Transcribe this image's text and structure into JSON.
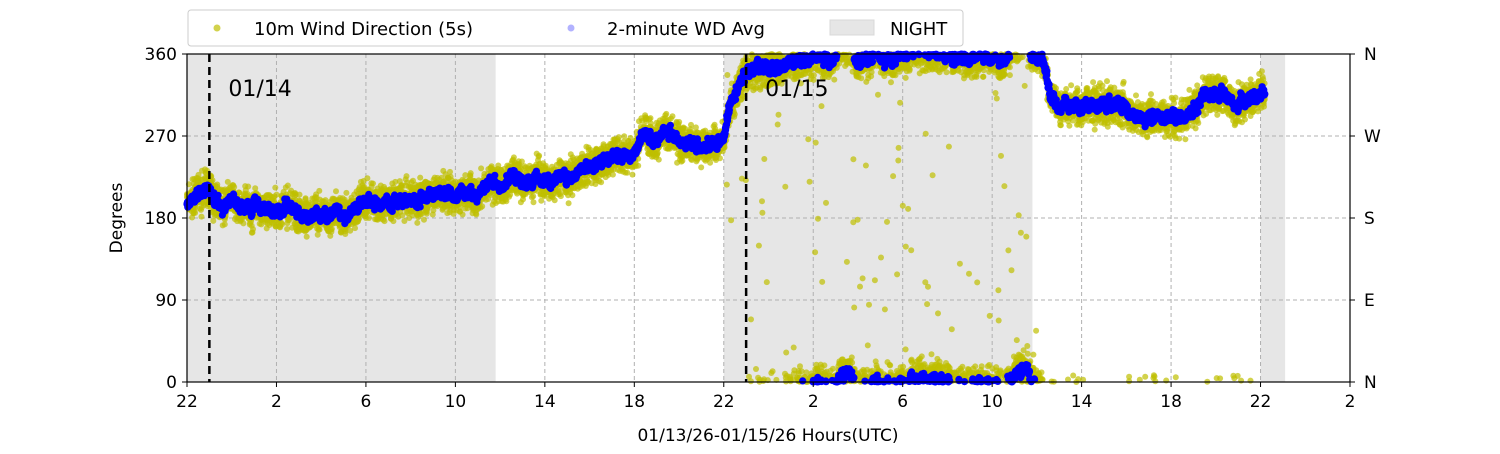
{
  "chart_data": {
    "type": "scatter",
    "ylabel": "Degrees",
    "xlabel": "01/13/26-01/15/26  Hours(UTC)",
    "x_unit": "hours since 01/13 22:00 UTC",
    "xlim": [
      0,
      52
    ],
    "ylim": [
      0,
      360
    ],
    "x_ticks": [
      0,
      4,
      8,
      12,
      16,
      20,
      24,
      28,
      32,
      36,
      40,
      44,
      48,
      52
    ],
    "x_tick_labels": [
      "22",
      "2",
      "6",
      "10",
      "14",
      "18",
      "22",
      "2",
      "6",
      "10",
      "14",
      "18",
      "22",
      "2"
    ],
    "y_ticks": [
      0,
      90,
      180,
      270,
      360
    ],
    "y_tick_labels": [
      "0",
      "90",
      "180",
      "270",
      "360"
    ],
    "right_tick_labels": [
      "N",
      "E",
      "S",
      "W",
      "N"
    ],
    "grid": true,
    "legend": {
      "placement": "top-center outside",
      "entries": [
        "10m Wind Direction (5s)",
        "2-minute WD Avg",
        "NIGHT"
      ]
    },
    "colors": {
      "wind_5s": "#bfbf00",
      "avg_2min": "#0000ff",
      "night": "#e6e6e6"
    },
    "night_bands": [
      [
        0,
        13.8
      ],
      [
        24,
        37.8
      ],
      [
        48,
        49.1
      ]
    ],
    "day_markers": [
      {
        "x": 1,
        "label": "01/14"
      },
      {
        "x": 25,
        "label": "01/15"
      }
    ],
    "series": [
      {
        "name": "2-minute WD Avg",
        "note": "trend (hour, degrees; values above 360 wrap to 0)",
        "points": [
          [
            0,
            195
          ],
          [
            1,
            215
          ],
          [
            1.5,
            195
          ],
          [
            4,
            190
          ],
          [
            6,
            185
          ],
          [
            7,
            178
          ],
          [
            8,
            198
          ],
          [
            10,
            200
          ],
          [
            12,
            208
          ],
          [
            14,
            218
          ],
          [
            16,
            222
          ],
          [
            17,
            225
          ],
          [
            18,
            235
          ],
          [
            19.5,
            250
          ],
          [
            20.5,
            275
          ],
          [
            22,
            265
          ],
          [
            23,
            260
          ],
          [
            24,
            268
          ],
          [
            24.2,
            300
          ],
          [
            25,
            340
          ],
          [
            26.5,
            350
          ],
          [
            28,
            362
          ],
          [
            30,
            358
          ],
          [
            32,
            362
          ],
          [
            34,
            360
          ],
          [
            36,
            362
          ],
          [
            37.5,
            365
          ],
          [
            38.3,
            355
          ],
          [
            38.6,
            310
          ],
          [
            40,
            300
          ],
          [
            42,
            300
          ],
          [
            43,
            290
          ],
          [
            45,
            300
          ],
          [
            46,
            320
          ],
          [
            47,
            305
          ],
          [
            48.2,
            320
          ]
        ]
      },
      {
        "name": "10m Wind Direction (5s)",
        "note": "scattered around the average trend with about ±25° spread",
        "spread_deg": 25
      }
    ]
  }
}
